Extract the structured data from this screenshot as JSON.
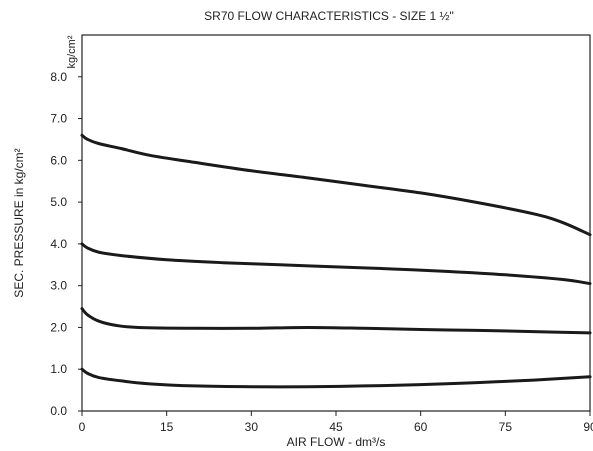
{
  "chart_data": {
    "type": "line",
    "title": "SR70 FLOW CHARACTERISTICS - SIZE 1 ½\"",
    "xlabel": "AIR FLOW - dm³/s",
    "ylabel": "SEC. PRESSURE in kg/cm²",
    "yunit": "kg/cm²",
    "xlim": [
      0,
      90
    ],
    "ylim": [
      0,
      9
    ],
    "xticks": [
      "0",
      "15",
      "30",
      "45",
      "60",
      "75",
      "90"
    ],
    "yticks": [
      "0.0",
      "1.0",
      "2.0",
      "3.0",
      "4.0",
      "5.0",
      "6.0",
      "7.0",
      "8.0"
    ],
    "grid": false,
    "line_color": "#1a1a1a",
    "series": [
      {
        "x": [
          0,
          1,
          3,
          7,
          12,
          20,
          30,
          40,
          50,
          60,
          70,
          80,
          85,
          90
        ],
        "y": [
          6.6,
          6.5,
          6.4,
          6.28,
          6.12,
          5.95,
          5.75,
          5.58,
          5.4,
          5.22,
          4.99,
          4.72,
          4.52,
          4.22
        ]
      },
      {
        "x": [
          0,
          1,
          3,
          7,
          15,
          25,
          35,
          45,
          55,
          65,
          75,
          85,
          90
        ],
        "y": [
          4.0,
          3.9,
          3.8,
          3.72,
          3.62,
          3.55,
          3.5,
          3.45,
          3.4,
          3.34,
          3.26,
          3.15,
          3.05
        ]
      },
      {
        "x": [
          0,
          1,
          3,
          6,
          10,
          20,
          30,
          40,
          50,
          60,
          70,
          80,
          90
        ],
        "y": [
          2.45,
          2.3,
          2.15,
          2.05,
          2.0,
          1.98,
          1.98,
          2.0,
          1.98,
          1.95,
          1.93,
          1.9,
          1.87
        ]
      },
      {
        "x": [
          0,
          1,
          3,
          7,
          12,
          20,
          30,
          40,
          50,
          60,
          70,
          80,
          90
        ],
        "y": [
          1.0,
          0.9,
          0.8,
          0.72,
          0.65,
          0.6,
          0.58,
          0.58,
          0.6,
          0.63,
          0.68,
          0.74,
          0.82
        ]
      }
    ]
  }
}
